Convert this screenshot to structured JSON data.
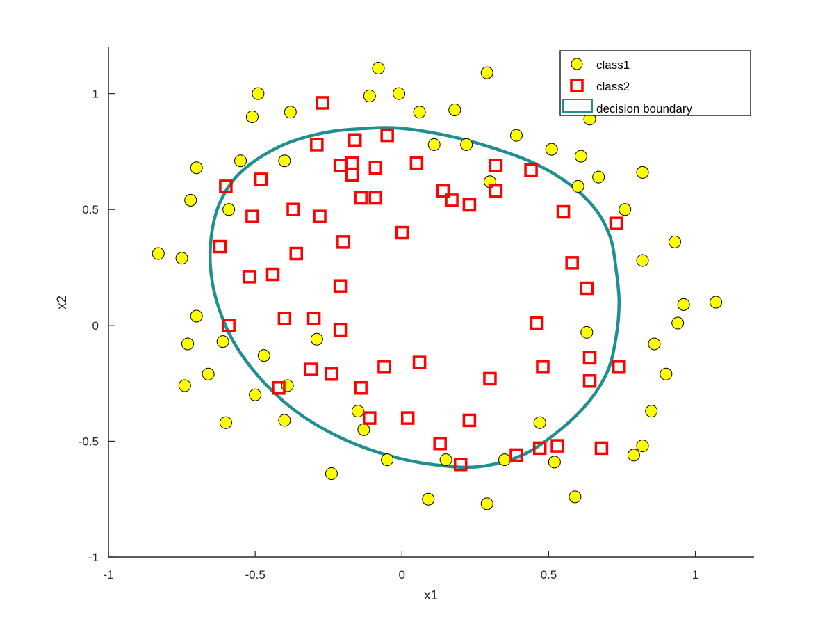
{
  "chart_data": {
    "type": "scatter",
    "xlabel": "x1",
    "ylabel": "x2",
    "xlim": [
      -1,
      1.2
    ],
    "ylim": [
      -1,
      1.2
    ],
    "x_ticks": [
      -1,
      -0.5,
      0,
      0.5,
      1
    ],
    "x_tick_labels": [
      "-1",
      "-0.5",
      "0",
      "0.5",
      "1"
    ],
    "y_ticks": [
      -1,
      -0.5,
      0,
      0.5,
      1
    ],
    "y_tick_labels": [
      "-1",
      "-0.5",
      "0",
      "0.5",
      "1"
    ],
    "grid": false,
    "legend": {
      "placement": "top-right",
      "entries": [
        "class1",
        "class2",
        "decision boundary"
      ]
    },
    "colors": {
      "class1_fill": "#ffff00",
      "class1_edge": "#000000",
      "class2_edge": "#ff0000",
      "boundary": "#1f8f8f"
    },
    "series": [
      {
        "name": "class1",
        "marker": "circle",
        "points": [
          [
            -0.08,
            1.11
          ],
          [
            0.29,
            1.09
          ],
          [
            -0.49,
            1.0
          ],
          [
            -0.11,
            0.99
          ],
          [
            -0.01,
            1.0
          ],
          [
            -0.51,
            0.9
          ],
          [
            -0.38,
            0.92
          ],
          [
            0.06,
            0.92
          ],
          [
            0.18,
            0.93
          ],
          [
            0.64,
            0.89
          ],
          [
            0.39,
            0.82
          ],
          [
            0.11,
            0.78
          ],
          [
            0.22,
            0.78
          ],
          [
            0.51,
            0.76
          ],
          [
            -0.55,
            0.71
          ],
          [
            -0.4,
            0.71
          ],
          [
            -0.7,
            0.68
          ],
          [
            0.61,
            0.73
          ],
          [
            0.82,
            0.66
          ],
          [
            0.67,
            0.64
          ],
          [
            0.6,
            0.6
          ],
          [
            0.3,
            0.62
          ],
          [
            -0.72,
            0.54
          ],
          [
            -0.59,
            0.5
          ],
          [
            0.76,
            0.5
          ],
          [
            0.93,
            0.36
          ],
          [
            -0.83,
            0.31
          ],
          [
            -0.75,
            0.29
          ],
          [
            0.82,
            0.28
          ],
          [
            0.96,
            0.09
          ],
          [
            1.07,
            0.1
          ],
          [
            -0.7,
            0.04
          ],
          [
            0.94,
            0.01
          ],
          [
            0.63,
            -0.03
          ],
          [
            -0.29,
            -0.06
          ],
          [
            -0.61,
            -0.07
          ],
          [
            -0.73,
            -0.08
          ],
          [
            0.86,
            -0.08
          ],
          [
            -0.47,
            -0.13
          ],
          [
            0.9,
            -0.21
          ],
          [
            -0.66,
            -0.21
          ],
          [
            -0.74,
            -0.26
          ],
          [
            -0.39,
            -0.26
          ],
          [
            -0.5,
            -0.3
          ],
          [
            -0.15,
            -0.37
          ],
          [
            0.85,
            -0.37
          ],
          [
            -0.4,
            -0.41
          ],
          [
            -0.6,
            -0.42
          ],
          [
            0.47,
            -0.42
          ],
          [
            -0.13,
            -0.45
          ],
          [
            0.82,
            -0.52
          ],
          [
            0.79,
            -0.56
          ],
          [
            -0.05,
            -0.58
          ],
          [
            0.15,
            -0.58
          ],
          [
            0.35,
            -0.58
          ],
          [
            0.52,
            -0.59
          ],
          [
            -0.24,
            -0.64
          ],
          [
            0.59,
            -0.74
          ],
          [
            0.09,
            -0.75
          ],
          [
            0.29,
            -0.77
          ]
        ]
      },
      {
        "name": "class2",
        "marker": "square",
        "points": [
          [
            -0.27,
            0.96
          ],
          [
            -0.05,
            0.82
          ],
          [
            -0.16,
            0.8
          ],
          [
            -0.29,
            0.78
          ],
          [
            -0.17,
            0.7
          ],
          [
            -0.21,
            0.69
          ],
          [
            -0.09,
            0.68
          ],
          [
            0.05,
            0.7
          ],
          [
            0.32,
            0.69
          ],
          [
            0.44,
            0.67
          ],
          [
            -0.17,
            0.65
          ],
          [
            -0.48,
            0.63
          ],
          [
            -0.6,
            0.6
          ],
          [
            0.14,
            0.58
          ],
          [
            0.32,
            0.58
          ],
          [
            0.17,
            0.54
          ],
          [
            0.23,
            0.52
          ],
          [
            -0.14,
            0.55
          ],
          [
            -0.09,
            0.55
          ],
          [
            -0.37,
            0.5
          ],
          [
            -0.51,
            0.47
          ],
          [
            -0.28,
            0.47
          ],
          [
            0.55,
            0.49
          ],
          [
            0.73,
            0.44
          ],
          [
            0.0,
            0.4
          ],
          [
            -0.2,
            0.36
          ],
          [
            -0.62,
            0.34
          ],
          [
            -0.36,
            0.31
          ],
          [
            0.58,
            0.27
          ],
          [
            -0.52,
            0.21
          ],
          [
            -0.44,
            0.22
          ],
          [
            -0.21,
            0.17
          ],
          [
            0.63,
            0.16
          ],
          [
            -0.4,
            0.03
          ],
          [
            -0.3,
            0.03
          ],
          [
            0.46,
            0.01
          ],
          [
            -0.59,
            0.0
          ],
          [
            -0.21,
            -0.02
          ],
          [
            0.64,
            -0.14
          ],
          [
            0.74,
            -0.18
          ],
          [
            -0.31,
            -0.19
          ],
          [
            -0.06,
            -0.18
          ],
          [
            0.06,
            -0.16
          ],
          [
            0.48,
            -0.18
          ],
          [
            -0.24,
            -0.21
          ],
          [
            0.3,
            -0.23
          ],
          [
            0.64,
            -0.24
          ],
          [
            -0.14,
            -0.27
          ],
          [
            -0.42,
            -0.27
          ],
          [
            -0.11,
            -0.4
          ],
          [
            0.02,
            -0.4
          ],
          [
            0.23,
            -0.41
          ],
          [
            0.13,
            -0.51
          ],
          [
            0.2,
            -0.6
          ],
          [
            0.39,
            -0.56
          ],
          [
            0.47,
            -0.53
          ],
          [
            0.53,
            -0.52
          ],
          [
            0.68,
            -0.53
          ]
        ]
      }
    ],
    "decision_boundary": [
      [
        -0.12,
        0.85
      ],
      [
        0.0,
        0.85
      ],
      [
        0.15,
        0.82
      ],
      [
        0.3,
        0.77
      ],
      [
        0.45,
        0.7
      ],
      [
        0.57,
        0.61
      ],
      [
        0.66,
        0.5
      ],
      [
        0.71,
        0.38
      ],
      [
        0.73,
        0.24
      ],
      [
        0.74,
        0.1
      ],
      [
        0.73,
        -0.05
      ],
      [
        0.7,
        -0.2
      ],
      [
        0.63,
        -0.34
      ],
      [
        0.53,
        -0.46
      ],
      [
        0.41,
        -0.56
      ],
      [
        0.26,
        -0.61
      ],
      [
        0.1,
        -0.6
      ],
      [
        -0.05,
        -0.56
      ],
      [
        -0.2,
        -0.49
      ],
      [
        -0.34,
        -0.39
      ],
      [
        -0.46,
        -0.26
      ],
      [
        -0.56,
        -0.1
      ],
      [
        -0.62,
        0.06
      ],
      [
        -0.65,
        0.22
      ],
      [
        -0.65,
        0.38
      ],
      [
        -0.62,
        0.53
      ],
      [
        -0.55,
        0.66
      ],
      [
        -0.42,
        0.77
      ],
      [
        -0.27,
        0.83
      ]
    ]
  }
}
